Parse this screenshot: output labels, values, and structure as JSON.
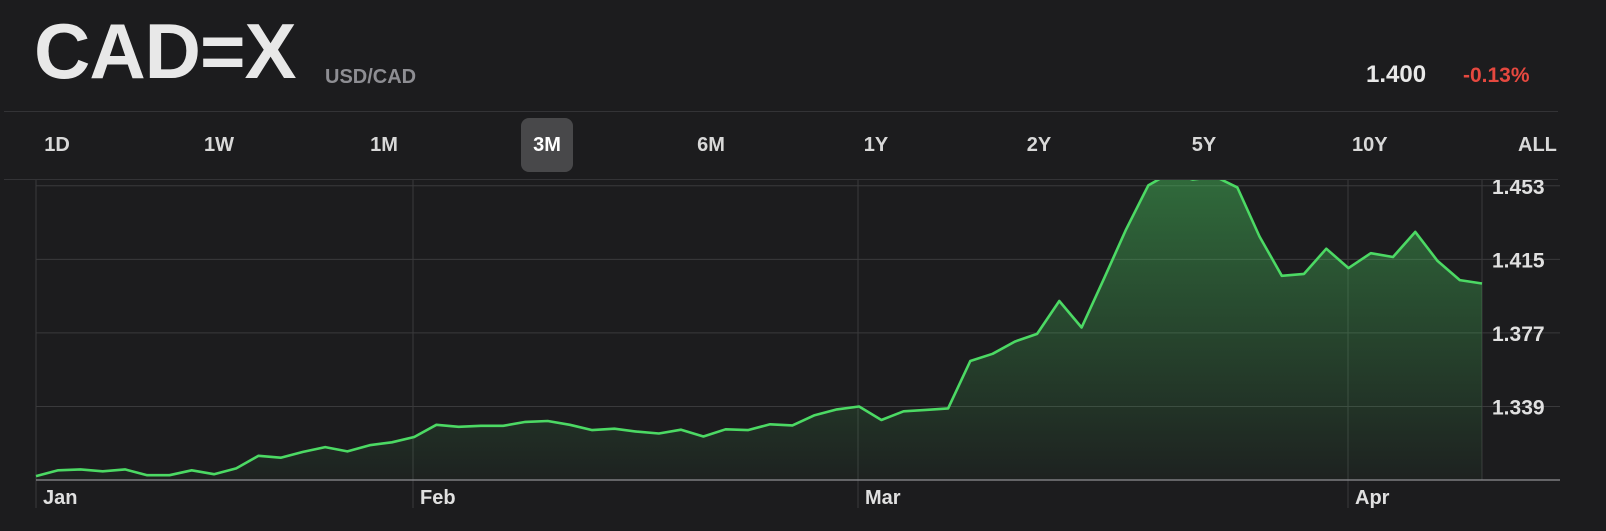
{
  "header": {
    "ticker": "CAD=X",
    "pair": "USD/CAD",
    "price": "1.400",
    "change": "-0.13%"
  },
  "ranges": [
    {
      "label": "1D",
      "active": false
    },
    {
      "label": "1W",
      "active": false
    },
    {
      "label": "1M",
      "active": false
    },
    {
      "label": "3M",
      "active": true
    },
    {
      "label": "6M",
      "active": false
    },
    {
      "label": "1Y",
      "active": false
    },
    {
      "label": "2Y",
      "active": false
    },
    {
      "label": "5Y",
      "active": false
    },
    {
      "label": "10Y",
      "active": false
    },
    {
      "label": "ALL",
      "active": false
    }
  ],
  "colors": {
    "line": "#4cd964",
    "negative": "#e5483f",
    "background": "#1c1c1e",
    "grid": "#3a3a3c"
  },
  "chart_data": {
    "type": "area",
    "x_ticks": [
      "Jan",
      "Feb",
      "Mar",
      "Apr"
    ],
    "y_ticks": [
      "1.453",
      "1.415",
      "1.377",
      "1.339"
    ],
    "ylim": [
      1.301,
      1.456
    ],
    "grid": true,
    "values": [
      1.303,
      1.306,
      1.3065,
      1.3055,
      1.3065,
      1.3035,
      1.3035,
      1.306,
      1.304,
      1.307,
      1.3135,
      1.3125,
      1.3155,
      1.318,
      1.3158,
      1.319,
      1.3205,
      1.3232,
      1.3295,
      1.3285,
      1.329,
      1.329,
      1.331,
      1.3315,
      1.3295,
      1.3268,
      1.3275,
      1.326,
      1.325,
      1.327,
      1.3235,
      1.3272,
      1.3268,
      1.3298,
      1.3292,
      1.3345,
      1.3375,
      1.339,
      1.332,
      1.3365,
      1.3372,
      1.338,
      1.3625,
      1.3662,
      1.3725,
      1.3765,
      1.3935,
      1.3798,
      1.4048,
      1.4305,
      1.4532,
      1.4598,
      1.4562,
      1.4578,
      1.4522,
      1.4268,
      1.4065,
      1.4075,
      1.4205,
      1.4105,
      1.4182,
      1.4162,
      1.4292,
      1.4142,
      1.4043,
      1.4025
    ]
  }
}
